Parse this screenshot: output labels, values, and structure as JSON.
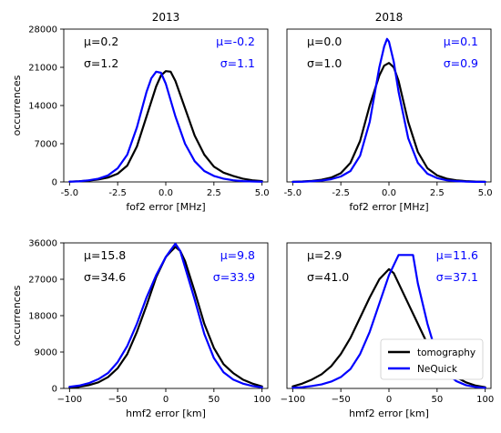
{
  "colors": {
    "tomography": "#000000",
    "NeQuick": "#0000ff"
  },
  "column_titles": [
    "2013",
    "2018"
  ],
  "legend": {
    "placement": "lower-right of bottom-right panel",
    "entries": [
      {
        "label": "tomography",
        "color": "#000000"
      },
      {
        "label": "NeQuick",
        "color": "#0000ff"
      }
    ]
  },
  "chart_data": [
    {
      "type": "line",
      "title": "2013",
      "xlabel": "fof2 error [MHz]",
      "ylabel": "occurrences",
      "xlim": [
        -5.3,
        5.3
      ],
      "ylim": [
        0,
        28000
      ],
      "xticks": [
        "-5.0",
        "-2.5",
        "0.0",
        "2.5",
        "5.0"
      ],
      "yticks": [
        "0",
        "7000",
        "14000",
        "21000",
        "28000"
      ],
      "stats": {
        "tomography": {
          "mu": "μ=0.2",
          "sigma": "σ=1.2"
        },
        "NeQuick": {
          "mu": "μ=-0.2",
          "sigma": "σ=1.1"
        }
      },
      "series": [
        {
          "name": "tomography",
          "x": [
            -5,
            -4.5,
            -4,
            -3.5,
            -3,
            -2.5,
            -2,
            -1.5,
            -1,
            -0.5,
            -0.25,
            0,
            0.25,
            0.5,
            1,
            1.5,
            2,
            2.5,
            3,
            3.5,
            4,
            4.5,
            5
          ],
          "y": [
            50,
            120,
            250,
            450,
            800,
            1500,
            3000,
            6500,
            12000,
            17500,
            19500,
            20300,
            20200,
            18500,
            13500,
            8500,
            5000,
            2800,
            1700,
            1100,
            600,
            300,
            150
          ]
        },
        {
          "name": "NeQuick",
          "x": [
            -5,
            -4.5,
            -4,
            -3.5,
            -3,
            -2.5,
            -2,
            -1.5,
            -1,
            -0.75,
            -0.5,
            -0.25,
            0,
            0.5,
            1,
            1.5,
            2,
            2.5,
            3,
            3.5,
            4,
            4.5,
            5
          ],
          "y": [
            50,
            100,
            300,
            600,
            1200,
            2500,
            5000,
            10000,
            16500,
            19000,
            20200,
            20000,
            18000,
            12000,
            7000,
            3800,
            2000,
            1100,
            600,
            300,
            150,
            80,
            40
          ]
        }
      ]
    },
    {
      "type": "line",
      "title": "2018",
      "xlabel": "fof2 error [MHz]",
      "ylabel": "",
      "xlim": [
        -5.3,
        5.3
      ],
      "ylim": [
        0,
        28000
      ],
      "xticks": [
        "-5.0",
        "-2.5",
        "0.0",
        "2.5",
        "5.0"
      ],
      "yticks": [],
      "stats": {
        "tomography": {
          "mu": "μ=0.0",
          "sigma": "σ=1.0"
        },
        "NeQuick": {
          "mu": "μ=0.1",
          "sigma": "σ=0.9"
        }
      },
      "series": [
        {
          "name": "tomography",
          "x": [
            -5,
            -4.5,
            -4,
            -3.5,
            -3,
            -2.5,
            -2,
            -1.5,
            -1,
            -0.5,
            -0.25,
            0,
            0.25,
            0.5,
            1,
            1.5,
            2,
            2.5,
            3,
            3.5,
            4,
            4.5,
            5
          ],
          "y": [
            30,
            80,
            200,
            400,
            800,
            1600,
            3500,
            7500,
            14000,
            19500,
            21300,
            21800,
            21000,
            18500,
            11000,
            5500,
            2500,
            1200,
            600,
            300,
            150,
            60,
            20
          ]
        },
        {
          "name": "NeQuick",
          "x": [
            -5,
            -4.5,
            -4,
            -3.5,
            -3,
            -2.5,
            -2,
            -1.5,
            -1,
            -0.5,
            -0.25,
            -0.1,
            0,
            0.25,
            0.5,
            1,
            1.5,
            2,
            2.5,
            3,
            3.5,
            4,
            4.5,
            5
          ],
          "y": [
            10,
            40,
            120,
            250,
            500,
            1000,
            2000,
            4800,
            11000,
            21000,
            24800,
            26200,
            25700,
            22000,
            16500,
            8000,
            3500,
            1500,
            700,
            300,
            150,
            60,
            20,
            10
          ]
        }
      ]
    },
    {
      "type": "line",
      "title": "",
      "xlabel": "hmf2 error [km]",
      "ylabel": "occurrences",
      "xlim": [
        -106,
        106
      ],
      "ylim": [
        0,
        36000
      ],
      "xticks": [
        "−100",
        "−50",
        "0",
        "50",
        "100"
      ],
      "yticks": [
        "0",
        "9000",
        "18000",
        "27000",
        "36000"
      ],
      "stats": {
        "tomography": {
          "mu": "μ=15.8",
          "sigma": "σ=34.6"
        },
        "NeQuick": {
          "mu": "μ=9.8",
          "sigma": "σ=33.9"
        }
      },
      "series": [
        {
          "name": "tomography",
          "x": [
            -100,
            -90,
            -80,
            -70,
            -60,
            -50,
            -40,
            -30,
            -20,
            -10,
            0,
            5,
            10,
            15,
            20,
            30,
            40,
            50,
            60,
            70,
            80,
            90,
            100
          ],
          "y": [
            200,
            400,
            800,
            1500,
            2800,
            5000,
            8500,
            14000,
            20500,
            27500,
            32500,
            33800,
            35000,
            34000,
            31500,
            24000,
            16000,
            10000,
            6000,
            3800,
            2200,
            1200,
            500
          ]
        },
        {
          "name": "NeQuick",
          "x": [
            -100,
            -90,
            -80,
            -70,
            -60,
            -50,
            -40,
            -30,
            -20,
            -10,
            0,
            5,
            10,
            15,
            20,
            30,
            40,
            50,
            60,
            70,
            80,
            90,
            100
          ],
          "y": [
            400,
            700,
            1300,
            2300,
            3800,
            6500,
            10500,
            16000,
            22500,
            28000,
            32500,
            34200,
            35800,
            34000,
            30000,
            22000,
            13500,
            7500,
            4000,
            2200,
            1200,
            600,
            250
          ]
        }
      ]
    },
    {
      "type": "line",
      "title": "",
      "xlabel": "hmf2 error [km]",
      "ylabel": "",
      "xlim": [
        -106,
        106
      ],
      "ylim": [
        0,
        36000
      ],
      "xticks": [
        "−100",
        "−50",
        "0",
        "50",
        "100"
      ],
      "yticks": [],
      "stats": {
        "tomography": {
          "mu": "μ=2.9",
          "sigma": "σ=41.0"
        },
        "NeQuick": {
          "mu": "μ=11.6",
          "sigma": "σ=37.1"
        }
      },
      "series": [
        {
          "name": "tomography",
          "x": [
            -100,
            -90,
            -80,
            -70,
            -60,
            -50,
            -40,
            -30,
            -20,
            -10,
            0,
            5,
            10,
            20,
            30,
            40,
            50,
            60,
            70,
            80,
            90,
            100
          ],
          "y": [
            500,
            1200,
            2200,
            3500,
            5500,
            8500,
            12500,
            17500,
            22500,
            27000,
            29500,
            28500,
            26000,
            21000,
            16000,
            11000,
            7000,
            4500,
            2800,
            1500,
            700,
            300
          ]
        },
        {
          "name": "NeQuick",
          "x": [
            -100,
            -90,
            -80,
            -70,
            -60,
            -50,
            -40,
            -30,
            -20,
            -10,
            0,
            5,
            10,
            20,
            25,
            30,
            40,
            50,
            60,
            70,
            80,
            90,
            100
          ],
          "y": [
            150,
            300,
            600,
            1000,
            1700,
            2800,
            4800,
            8500,
            14000,
            21000,
            28000,
            30500,
            33000,
            33000,
            33000,
            26000,
            16000,
            8000,
            3800,
            1800,
            800,
            350,
            150
          ]
        }
      ]
    }
  ]
}
